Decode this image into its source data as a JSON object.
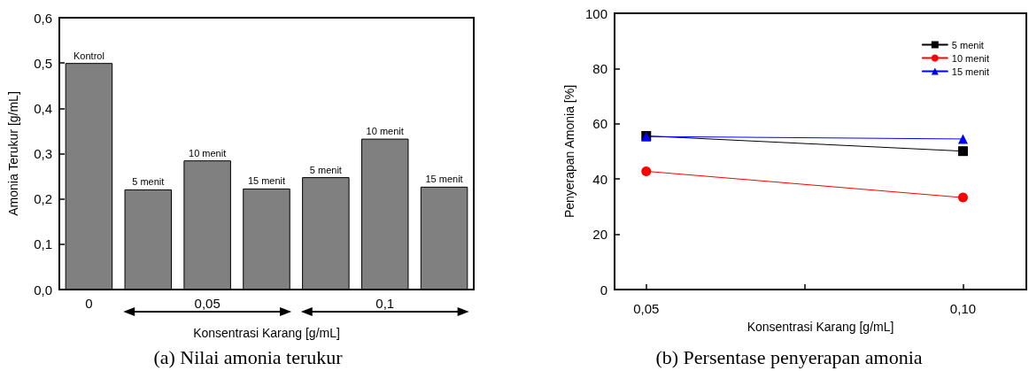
{
  "chart_data": [
    {
      "type": "bar",
      "title": "(a) Nilai amonia terukur",
      "xlabel": "Konsentrasi Karang [g/mL]",
      "ylabel": "Amonia Terukur [g/mL]",
      "categories": [
        "0",
        null,
        "0,05",
        null,
        null,
        "0,1",
        null
      ],
      "values": [
        0.5,
        0.221,
        0.285,
        0.223,
        0.248,
        0.333,
        0.227
      ],
      "annotations": [
        {
          "text": "Kontrol",
          "y": 0.5
        },
        {
          "text": "5 menit",
          "y": 0.221
        },
        {
          "text": "10 menit",
          "y": 0.285
        },
        {
          "text": "15 menit",
          "y": 0.223
        },
        {
          "text": "5 menit",
          "y": 0.248
        },
        {
          "text": "10 menit",
          "y": 0.333
        },
        {
          "text": "15 menit",
          "y": 0.227
        }
      ],
      "color": "#808080",
      "ylim": [
        0,
        0.6
      ],
      "yticks": [
        {
          "value": 0,
          "label": "0,0"
        },
        {
          "value": 0.1,
          "label": "0,1"
        },
        {
          "value": 0.2,
          "label": "0,2"
        },
        {
          "value": 0.3,
          "label": "0,3"
        },
        {
          "value": 0.4,
          "label": "0,4"
        },
        {
          "value": 0.5,
          "label": "0,5"
        },
        {
          "value": 0.6,
          "label": "0,6"
        }
      ],
      "grid": false,
      "legend": false
    },
    {
      "type": "line",
      "title": "(b) Persentase penyerapan amonia",
      "xlabel": "Konsentrasi Karang [g/mL]",
      "ylabel": "Penyerapan Amonia [%]",
      "x": [
        0.05,
        0.1
      ],
      "series": [
        {
          "name": "5 menit",
          "color": "#000000",
          "values": [
            55.6,
            50.1
          ],
          "marker": "square"
        },
        {
          "name": "10 menit",
          "color": "#ff0000",
          "values": [
            42.8,
            33.3
          ],
          "marker": "circle"
        },
        {
          "name": "15 menit",
          "color": "#0000ff",
          "values": [
            55.4,
            54.5
          ],
          "marker": "triangle"
        }
      ],
      "xlim": [
        0.045,
        0.11
      ],
      "xticks": [
        {
          "value": 0.05,
          "label": "0,05"
        },
        {
          "value": 0.075,
          "label": null
        },
        {
          "value": 0.1,
          "label": "0,10"
        }
      ],
      "ylim": [
        0,
        100
      ],
      "yticks": [
        0,
        20,
        40,
        60,
        80,
        100
      ],
      "grid": false,
      "legend": "top right",
      "line_style": "solid"
    }
  ]
}
